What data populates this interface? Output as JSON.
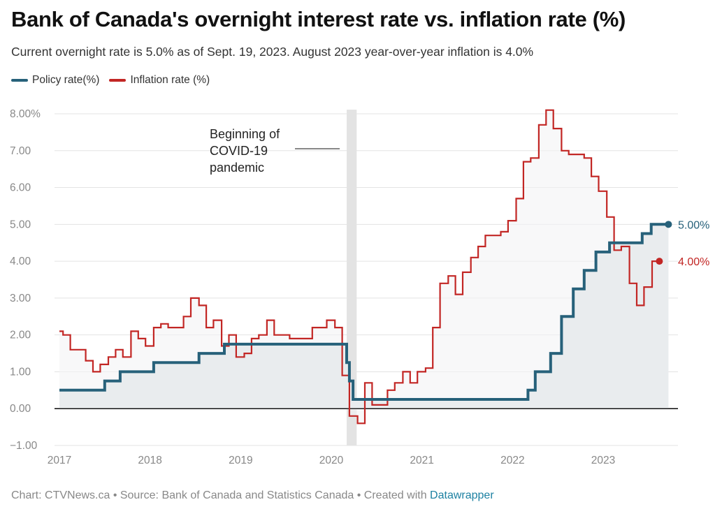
{
  "header": {
    "title": "Bank of Canada's overnight interest rate vs. inflation rate (%)",
    "subtitle": "Current overnight rate is 5.0% as of Sept. 19, 2023. August 2023 year-over-year inflation is 4.0%"
  },
  "footer": {
    "credit": "Chart: CTVNews.ca • Source: Bank of Canada and Statistics Canada • Created with ",
    "tool": "Datawrapper"
  },
  "colors": {
    "policy": "#27617a",
    "inflation": "#c22624",
    "grid": "#e3e3e3",
    "axis_text": "#888888",
    "covid_band": "#e3e3e3",
    "area_fill": "#e9ecee"
  },
  "chart_data": {
    "type": "line",
    "x_ticks": [
      {
        "label": "2017",
        "value": 2017
      },
      {
        "label": "2018",
        "value": 2018
      },
      {
        "label": "2019",
        "value": 2019
      },
      {
        "label": "2020",
        "value": 2020
      },
      {
        "label": "2021",
        "value": 2021
      },
      {
        "label": "2022",
        "value": 2022
      },
      {
        "label": "2023",
        "value": 2023
      }
    ],
    "y_ticks": [
      {
        "label": "8.00%",
        "value": 8
      },
      {
        "label": "7.00",
        "value": 7
      },
      {
        "label": "6.00",
        "value": 6
      },
      {
        "label": "5.00",
        "value": 5
      },
      {
        "label": "4.00",
        "value": 4
      },
      {
        "label": "3.00",
        "value": 3
      },
      {
        "label": "2.00",
        "value": 2
      },
      {
        "label": "1.00",
        "value": 1
      },
      {
        "label": "0.00",
        "value": 0
      },
      {
        "label": "−1.00",
        "value": -1
      }
    ],
    "xlim": [
      2017,
      2024
    ],
    "ylim": [
      -1,
      8.5
    ],
    "annotation": {
      "lines": [
        "Beginning of",
        "COVID-19",
        "pandemic"
      ],
      "band": [
        2020.17,
        2020.28
      ]
    },
    "series": [
      {
        "name": "Policy rate(%)",
        "color": "#27617a",
        "end_label": "5.00%",
        "points": [
          [
            2017.0,
            0.5
          ],
          [
            2017.5,
            0.75
          ],
          [
            2017.67,
            1.0
          ],
          [
            2018.04,
            1.25
          ],
          [
            2018.54,
            1.5
          ],
          [
            2018.82,
            1.75
          ],
          [
            2020.17,
            1.25
          ],
          [
            2020.2,
            0.75
          ],
          [
            2020.24,
            0.25
          ],
          [
            2022.17,
            0.5
          ],
          [
            2022.25,
            1.0
          ],
          [
            2022.42,
            1.5
          ],
          [
            2022.54,
            2.5
          ],
          [
            2022.67,
            3.25
          ],
          [
            2022.79,
            3.75
          ],
          [
            2022.92,
            4.25
          ],
          [
            2023.07,
            4.5
          ],
          [
            2023.43,
            4.75
          ],
          [
            2023.53,
            5.0
          ],
          [
            2023.72,
            5.0
          ]
        ]
      },
      {
        "name": "Inflation rate (%)",
        "color": "#c22624",
        "end_label": "4.00%",
        "points": [
          [
            2017.0,
            2.1
          ],
          [
            2017.04,
            2.0
          ],
          [
            2017.12,
            1.6
          ],
          [
            2017.29,
            1.3
          ],
          [
            2017.37,
            1.0
          ],
          [
            2017.45,
            1.2
          ],
          [
            2017.54,
            1.4
          ],
          [
            2017.62,
            1.6
          ],
          [
            2017.7,
            1.4
          ],
          [
            2017.79,
            2.1
          ],
          [
            2017.87,
            1.9
          ],
          [
            2017.95,
            1.7
          ],
          [
            2018.04,
            2.2
          ],
          [
            2018.12,
            2.3
          ],
          [
            2018.2,
            2.2
          ],
          [
            2018.37,
            2.5
          ],
          [
            2018.45,
            3.0
          ],
          [
            2018.54,
            2.8
          ],
          [
            2018.62,
            2.2
          ],
          [
            2018.7,
            2.4
          ],
          [
            2018.79,
            1.7
          ],
          [
            2018.87,
            2.0
          ],
          [
            2018.95,
            1.4
          ],
          [
            2019.04,
            1.5
          ],
          [
            2019.12,
            1.9
          ],
          [
            2019.2,
            2.0
          ],
          [
            2019.29,
            2.4
          ],
          [
            2019.37,
            2.0
          ],
          [
            2019.54,
            1.9
          ],
          [
            2019.79,
            2.2
          ],
          [
            2019.95,
            2.4
          ],
          [
            2020.04,
            2.2
          ],
          [
            2020.12,
            0.9
          ],
          [
            2020.2,
            -0.2
          ],
          [
            2020.29,
            -0.4
          ],
          [
            2020.37,
            0.7
          ],
          [
            2020.45,
            0.1
          ],
          [
            2020.62,
            0.5
          ],
          [
            2020.7,
            0.7
          ],
          [
            2020.79,
            1.0
          ],
          [
            2020.87,
            0.7
          ],
          [
            2020.95,
            1.0
          ],
          [
            2021.04,
            1.1
          ],
          [
            2021.12,
            2.2
          ],
          [
            2021.2,
            3.4
          ],
          [
            2021.29,
            3.6
          ],
          [
            2021.37,
            3.1
          ],
          [
            2021.45,
            3.7
          ],
          [
            2021.54,
            4.1
          ],
          [
            2021.62,
            4.4
          ],
          [
            2021.7,
            4.7
          ],
          [
            2021.87,
            4.8
          ],
          [
            2021.95,
            5.1
          ],
          [
            2022.04,
            5.7
          ],
          [
            2022.12,
            6.7
          ],
          [
            2022.2,
            6.8
          ],
          [
            2022.29,
            7.7
          ],
          [
            2022.37,
            8.1
          ],
          [
            2022.45,
            7.6
          ],
          [
            2022.54,
            7.0
          ],
          [
            2022.62,
            6.9
          ],
          [
            2022.79,
            6.8
          ],
          [
            2022.87,
            6.3
          ],
          [
            2022.95,
            5.9
          ],
          [
            2023.04,
            5.2
          ],
          [
            2023.12,
            4.3
          ],
          [
            2023.2,
            4.4
          ],
          [
            2023.29,
            3.4
          ],
          [
            2023.37,
            2.8
          ],
          [
            2023.45,
            3.3
          ],
          [
            2023.54,
            4.0
          ],
          [
            2023.62,
            4.0
          ]
        ]
      }
    ]
  }
}
